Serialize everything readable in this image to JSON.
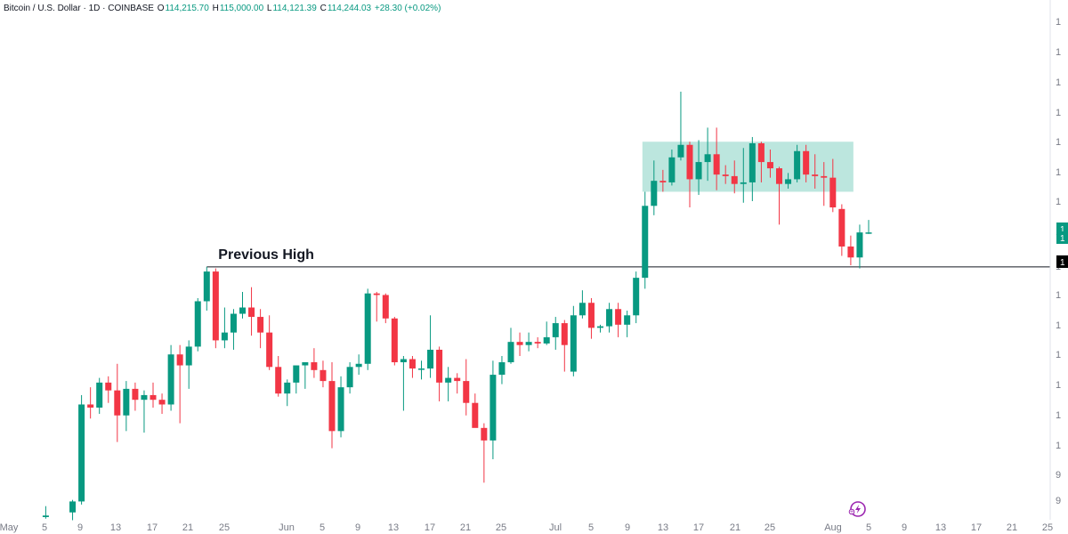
{
  "header": {
    "symbol": "Bitcoin / U.S. Dollar · 1D · COINBASE",
    "open_label": "O",
    "open": "114,215.70",
    "high_label": "H",
    "high": "115,000.00",
    "low_label": "L",
    "low": "114,121.39",
    "close_label": "C",
    "close": "114,244.03",
    "change": "+28.30 (+0.02%)"
  },
  "colors": {
    "up": "#089981",
    "down": "#f23645",
    "zone": "#8fd5c8",
    "line": "#131722",
    "axis_text": "#787b86",
    "accent": "#9c27b0"
  },
  "icons": {
    "bottom_right": "lightning-circle-icon"
  },
  "chart_data": {
    "type": "candlestick",
    "annotation": {
      "text": "Previous High",
      "level": 112000
    },
    "zone": {
      "from": "Jul 11",
      "to": "Aug 1",
      "top": 120000,
      "bottom": 116800
    },
    "price_badges": [
      "1",
      "1",
      "1"
    ],
    "right_axis_ticks": [
      "1",
      "1",
      "1",
      "1",
      "1",
      "1",
      "1",
      "1",
      "1",
      "1",
      "1",
      "1",
      "1",
      "1",
      "1",
      "9",
      "9"
    ],
    "x_ticks": [
      "May",
      "5",
      "9",
      "13",
      "17",
      "21",
      "25",
      "Jun",
      "5",
      "9",
      "13",
      "17",
      "21",
      "25",
      "Jul",
      "5",
      "9",
      "13",
      "17",
      "21",
      "25",
      "Aug",
      "5",
      "9",
      "13",
      "17",
      "21",
      "25"
    ],
    "ohlc": [
      {
        "d": "May 4",
        "o": 96000,
        "h": 96700,
        "l": 95900,
        "c": 96100
      },
      {
        "d": "May 7",
        "o": 96300,
        "h": 97100,
        "l": 95800,
        "c": 97000
      },
      {
        "d": "May 8",
        "o": 97000,
        "h": 103800,
        "l": 96800,
        "c": 103200
      },
      {
        "d": "May 9",
        "o": 103200,
        "h": 104300,
        "l": 102300,
        "c": 103000
      },
      {
        "d": "May 10",
        "o": 103000,
        "h": 104900,
        "l": 102600,
        "c": 104600
      },
      {
        "d": "May 11",
        "o": 104600,
        "h": 105000,
        "l": 103300,
        "c": 104100
      },
      {
        "d": "May 12",
        "o": 104100,
        "h": 105800,
        "l": 100800,
        "c": 102500
      },
      {
        "d": "May 13",
        "o": 102500,
        "h": 104700,
        "l": 101500,
        "c": 104200
      },
      {
        "d": "May 14",
        "o": 104200,
        "h": 104600,
        "l": 102800,
        "c": 103500
      },
      {
        "d": "May 15",
        "o": 103500,
        "h": 104100,
        "l": 101400,
        "c": 103800
      },
      {
        "d": "May 16",
        "o": 103800,
        "h": 104600,
        "l": 103000,
        "c": 103500
      },
      {
        "d": "May 17",
        "o": 103500,
        "h": 103900,
        "l": 102600,
        "c": 103200
      },
      {
        "d": "May 18",
        "o": 103200,
        "h": 107000,
        "l": 102800,
        "c": 106400
      },
      {
        "d": "May 19",
        "o": 106400,
        "h": 107000,
        "l": 102000,
        "c": 105700
      },
      {
        "d": "May 20",
        "o": 105700,
        "h": 107300,
        "l": 104200,
        "c": 106900
      },
      {
        "d": "May 21",
        "o": 106900,
        "h": 110000,
        "l": 106600,
        "c": 109800
      },
      {
        "d": "May 22",
        "o": 109800,
        "h": 112000,
        "l": 109200,
        "c": 111700
      },
      {
        "d": "May 23",
        "o": 111700,
        "h": 111900,
        "l": 106800,
        "c": 107300
      },
      {
        "d": "May 24",
        "o": 107300,
        "h": 109400,
        "l": 106800,
        "c": 107800
      },
      {
        "d": "May 25",
        "o": 107800,
        "h": 109300,
        "l": 106700,
        "c": 109000
      },
      {
        "d": "May 26",
        "o": 109000,
        "h": 110400,
        "l": 108700,
        "c": 109400
      },
      {
        "d": "May 27",
        "o": 109400,
        "h": 110700,
        "l": 107600,
        "c": 108800
      },
      {
        "d": "May 28",
        "o": 108800,
        "h": 109300,
        "l": 106800,
        "c": 107800
      },
      {
        "d": "May 29",
        "o": 107800,
        "h": 108900,
        "l": 105400,
        "c": 105600
      },
      {
        "d": "May 30",
        "o": 105600,
        "h": 106300,
        "l": 103700,
        "c": 103900
      },
      {
        "d": "May 31",
        "o": 103900,
        "h": 104800,
        "l": 103100,
        "c": 104600
      },
      {
        "d": "Jun 1",
        "o": 104600,
        "h": 105500,
        "l": 103900,
        "c": 105700
      },
      {
        "d": "Jun 2",
        "o": 105700,
        "h": 105900,
        "l": 104200,
        "c": 105900
      },
      {
        "d": "Jun 3",
        "o": 105900,
        "h": 106800,
        "l": 104900,
        "c": 105400
      },
      {
        "d": "Jun 4",
        "o": 105400,
        "h": 106000,
        "l": 104300,
        "c": 104700
      },
      {
        "d": "Jun 5",
        "o": 104700,
        "h": 105900,
        "l": 100400,
        "c": 101500
      },
      {
        "d": "Jun 6",
        "o": 101500,
        "h": 105000,
        "l": 101100,
        "c": 104300
      },
      {
        "d": "Jun 7",
        "o": 104300,
        "h": 105900,
        "l": 103900,
        "c": 105600
      },
      {
        "d": "Jun 8",
        "o": 105600,
        "h": 106400,
        "l": 105100,
        "c": 105800
      },
      {
        "d": "Jun 9",
        "o": 105800,
        "h": 110600,
        "l": 105400,
        "c": 110300
      },
      {
        "d": "Jun 10",
        "o": 110300,
        "h": 110400,
        "l": 108500,
        "c": 110200
      },
      {
        "d": "Jun 11",
        "o": 110200,
        "h": 110300,
        "l": 108400,
        "c": 108700
      },
      {
        "d": "Jun 12",
        "o": 108700,
        "h": 108800,
        "l": 105700,
        "c": 105900
      },
      {
        "d": "Jun 13",
        "o": 105900,
        "h": 106300,
        "l": 102800,
        "c": 106100
      },
      {
        "d": "Jun 14",
        "o": 106100,
        "h": 106300,
        "l": 104900,
        "c": 105500
      },
      {
        "d": "Jun 15",
        "o": 105500,
        "h": 106000,
        "l": 104800,
        "c": 105500
      },
      {
        "d": "Jun 16",
        "o": 105500,
        "h": 108900,
        "l": 104900,
        "c": 106700
      },
      {
        "d": "Jun 17",
        "o": 106700,
        "h": 106900,
        "l": 103400,
        "c": 104600
      },
      {
        "d": "Jun 18",
        "o": 104600,
        "h": 105600,
        "l": 103400,
        "c": 104900
      },
      {
        "d": "Jun 19",
        "o": 104900,
        "h": 105200,
        "l": 103900,
        "c": 104700
      },
      {
        "d": "Jun 20",
        "o": 104700,
        "h": 106100,
        "l": 102500,
        "c": 103300
      },
      {
        "d": "Jun 21",
        "o": 103300,
        "h": 103900,
        "l": 101800,
        "c": 101700
      },
      {
        "d": "Jun 22",
        "o": 101700,
        "h": 102000,
        "l": 98200,
        "c": 100900
      },
      {
        "d": "Jun 23",
        "o": 100900,
        "h": 106000,
        "l": 99700,
        "c": 105100
      },
      {
        "d": "Jun 24",
        "o": 105100,
        "h": 106300,
        "l": 104500,
        "c": 105900
      },
      {
        "d": "Jun 25",
        "o": 105900,
        "h": 108100,
        "l": 105800,
        "c": 107200
      },
      {
        "d": "Jun 26",
        "o": 107200,
        "h": 107800,
        "l": 106300,
        "c": 107000
      },
      {
        "d": "Jun 27",
        "o": 107000,
        "h": 107800,
        "l": 106600,
        "c": 107200
      },
      {
        "d": "Jun 28",
        "o": 107200,
        "h": 107500,
        "l": 106800,
        "c": 107100
      },
      {
        "d": "Jun 29",
        "o": 107100,
        "h": 108500,
        "l": 107000,
        "c": 107500
      },
      {
        "d": "Jun 30",
        "o": 107500,
        "h": 108800,
        "l": 106700,
        "c": 108400
      },
      {
        "d": "Jul 1",
        "o": 108400,
        "h": 108600,
        "l": 105300,
        "c": 107000
      },
      {
        "d": "Jul 2",
        "o": 105300,
        "h": 109500,
        "l": 105000,
        "c": 108900
      },
      {
        "d": "Jul 3",
        "o": 108900,
        "h": 110500,
        "l": 108700,
        "c": 109700
      },
      {
        "d": "Jul 4",
        "o": 109700,
        "h": 110000,
        "l": 107400,
        "c": 108100
      },
      {
        "d": "Jul 5",
        "o": 108100,
        "h": 108300,
        "l": 107800,
        "c": 108200
      },
      {
        "d": "Jul 6",
        "o": 108200,
        "h": 109700,
        "l": 107800,
        "c": 109300
      },
      {
        "d": "Jul 7",
        "o": 109300,
        "h": 109700,
        "l": 107500,
        "c": 108300
      },
      {
        "d": "Jul 8",
        "o": 108300,
        "h": 109200,
        "l": 107500,
        "c": 108900
      },
      {
        "d": "Jul 9",
        "o": 108900,
        "h": 111700,
        "l": 108400,
        "c": 111300
      },
      {
        "d": "Jul 10",
        "o": 111300,
        "h": 116800,
        "l": 110600,
        "c": 115900
      },
      {
        "d": "Jul 11",
        "o": 115900,
        "h": 118800,
        "l": 115300,
        "c": 117500
      },
      {
        "d": "Jul 12",
        "o": 117500,
        "h": 118200,
        "l": 116800,
        "c": 117400
      },
      {
        "d": "Jul 13",
        "o": 117400,
        "h": 119500,
        "l": 117200,
        "c": 119000
      },
      {
        "d": "Jul 14",
        "o": 119000,
        "h": 123200,
        "l": 118800,
        "c": 119800
      },
      {
        "d": "Jul 15",
        "o": 119800,
        "h": 120000,
        "l": 115800,
        "c": 117600
      },
      {
        "d": "Jul 16",
        "o": 117600,
        "h": 120100,
        "l": 116600,
        "c": 118700
      },
      {
        "d": "Jul 17",
        "o": 118700,
        "h": 120900,
        "l": 117500,
        "c": 119200
      },
      {
        "d": "Jul 18",
        "o": 119200,
        "h": 120900,
        "l": 116900,
        "c": 117900
      },
      {
        "d": "Jul 19",
        "o": 117900,
        "h": 118500,
        "l": 117300,
        "c": 117800
      },
      {
        "d": "Jul 20",
        "o": 117800,
        "h": 118800,
        "l": 116700,
        "c": 117300
      },
      {
        "d": "Jul 21",
        "o": 117300,
        "h": 119600,
        "l": 116100,
        "c": 117400
      },
      {
        "d": "Jul 22",
        "o": 117400,
        "h": 120300,
        "l": 116200,
        "c": 119900
      },
      {
        "d": "Jul 23",
        "o": 119900,
        "h": 120000,
        "l": 117400,
        "c": 118700
      },
      {
        "d": "Jul 24",
        "o": 118700,
        "h": 119500,
        "l": 117700,
        "c": 118300
      },
      {
        "d": "Jul 25",
        "o": 118300,
        "h": 118400,
        "l": 114700,
        "c": 117300
      },
      {
        "d": "Jul 26",
        "o": 117300,
        "h": 118000,
        "l": 117000,
        "c": 117600
      },
      {
        "d": "Jul 27",
        "o": 117600,
        "h": 119800,
        "l": 117400,
        "c": 119400
      },
      {
        "d": "Jul 28",
        "o": 119400,
        "h": 119800,
        "l": 117400,
        "c": 117900
      },
      {
        "d": "Jul 29",
        "o": 117900,
        "h": 119200,
        "l": 117000,
        "c": 117800
      },
      {
        "d": "Jul 30",
        "o": 117800,
        "h": 118700,
        "l": 115900,
        "c": 117700
      },
      {
        "d": "Jul 31",
        "o": 117700,
        "h": 118900,
        "l": 115500,
        "c": 115800
      },
      {
        "d": "Aug 1",
        "o": 115700,
        "h": 116000,
        "l": 112700,
        "c": 113300
      },
      {
        "d": "Aug 2",
        "o": 113300,
        "h": 114000,
        "l": 112100,
        "c": 112600
      },
      {
        "d": "Aug 3",
        "o": 112600,
        "h": 114700,
        "l": 111900,
        "c": 114200
      },
      {
        "d": "Aug 4",
        "o": 114200,
        "h": 115000,
        "l": 114100,
        "c": 114200
      }
    ]
  }
}
